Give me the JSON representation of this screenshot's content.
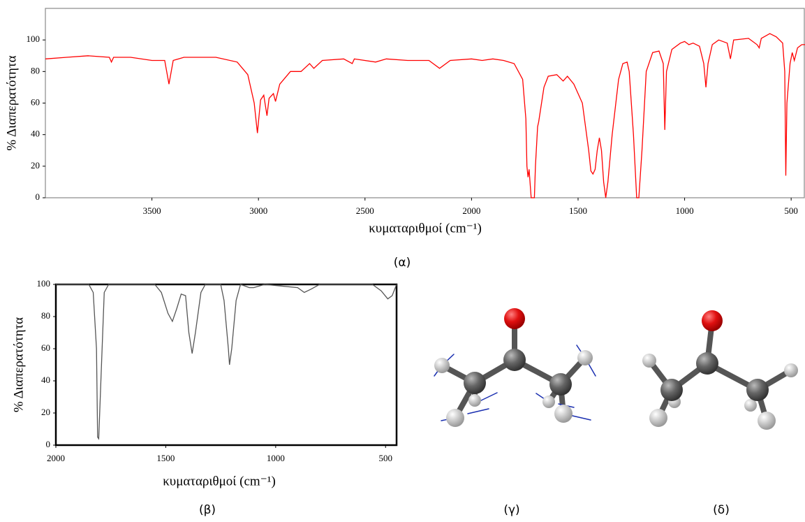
{
  "chart_data": [
    {
      "type": "line",
      "xlabel": "κυματαριθμοί (cm⁻¹)",
      "ylabel": "% Διαπερατότητα",
      "color": "#ff0000",
      "xlim": [
        4000,
        435
      ],
      "ylim": [
        0,
        120
      ],
      "xticks": [
        3500,
        3000,
        2500,
        2000,
        1500,
        1000,
        500
      ],
      "yticks": [
        0,
        20,
        40,
        60,
        80,
        100
      ],
      "x": [
        4000,
        3900,
        3800,
        3700,
        3690,
        3680,
        3600,
        3500,
        3440,
        3420,
        3400,
        3350,
        3200,
        3100,
        3050,
        3020,
        3005,
        2990,
        2975,
        2960,
        2950,
        2930,
        2920,
        2900,
        2850,
        2800,
        2760,
        2740,
        2700,
        2600,
        2560,
        2550,
        2450,
        2400,
        2300,
        2200,
        2150,
        2100,
        2000,
        1950,
        1900,
        1850,
        1800,
        1760,
        1745,
        1740,
        1735,
        1730,
        1720,
        1705,
        1700,
        1690,
        1685,
        1660,
        1640,
        1600,
        1570,
        1550,
        1520,
        1480,
        1450,
        1440,
        1430,
        1420,
        1410,
        1400,
        1390,
        1380,
        1370,
        1360,
        1340,
        1310,
        1290,
        1270,
        1260,
        1240,
        1225,
        1215,
        1200,
        1180,
        1150,
        1120,
        1100,
        1093,
        1085,
        1060,
        1020,
        1000,
        980,
        960,
        930,
        910,
        900,
        890,
        870,
        840,
        800,
        785,
        770,
        700,
        660,
        650,
        640,
        600,
        570,
        540,
        530,
        525,
        520,
        505,
        495,
        485,
        470,
        450,
        435
      ],
      "values": [
        88,
        89,
        90,
        89,
        86,
        89,
        89,
        87,
        87,
        72,
        87,
        89,
        89,
        86,
        78,
        60,
        41,
        62,
        65,
        52,
        63,
        66,
        61,
        72,
        80,
        80,
        85,
        82,
        87,
        88,
        85,
        88,
        86,
        88,
        87,
        87,
        82,
        87,
        88,
        87,
        88,
        87,
        85,
        75,
        50,
        20,
        13,
        18,
        0,
        0,
        20,
        45,
        48,
        70,
        77,
        78,
        74,
        77,
        72,
        60,
        30,
        17,
        15,
        18,
        30,
        38,
        30,
        10,
        0,
        10,
        40,
        75,
        85,
        86,
        80,
        40,
        0,
        0,
        30,
        80,
        92,
        93,
        85,
        43,
        80,
        94,
        98,
        99,
        97,
        98,
        96,
        85,
        70,
        85,
        97,
        100,
        98,
        88,
        100,
        101,
        97,
        95,
        101,
        104,
        102,
        98,
        80,
        14,
        60,
        85,
        92,
        87,
        95,
        97,
        97
      ]
    },
    {
      "type": "line",
      "xlabel": "κυματαριθμοί (cm⁻¹)",
      "ylabel": "% Διαπερατότητα",
      "color": "#555555",
      "xlim": [
        2000,
        450
      ],
      "ylim": [
        0,
        100
      ],
      "xticks": [
        2000,
        1500,
        1000,
        500
      ],
      "yticks": [
        0,
        20,
        40,
        60,
        80,
        100
      ],
      "x": [
        2000,
        1850,
        1830,
        1815,
        1810,
        1805,
        1795,
        1780,
        1760,
        1550,
        1520,
        1490,
        1470,
        1450,
        1430,
        1410,
        1395,
        1380,
        1365,
        1340,
        1320,
        1250,
        1235,
        1215,
        1210,
        1200,
        1180,
        1160,
        1120,
        1100,
        1050,
        900,
        870,
        840,
        800,
        700,
        560,
        520,
        490,
        470,
        450
      ],
      "values": [
        100,
        100,
        95,
        60,
        5,
        4,
        40,
        95,
        100,
        100,
        95,
        82,
        77,
        85,
        94,
        93,
        70,
        57,
        70,
        95,
        100,
        100,
        90,
        60,
        50,
        60,
        90,
        100,
        98,
        98,
        100,
        98,
        95,
        97,
        100,
        100,
        100,
        96,
        91,
        93,
        100
      ]
    }
  ],
  "captions": [
    "(α)",
    "(β)",
    "(γ)",
    "(δ)"
  ]
}
